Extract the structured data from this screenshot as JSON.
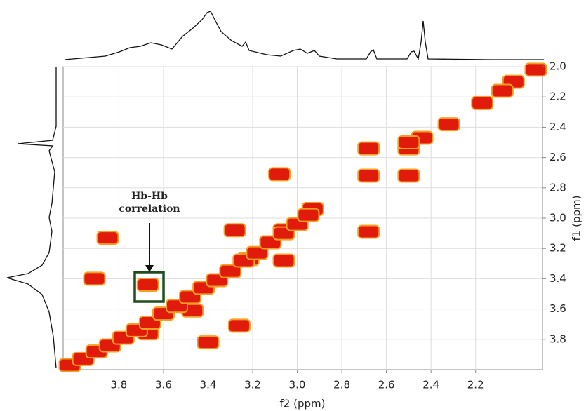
{
  "chart_data": {
    "type": "scatter",
    "xlabel": "f2 (ppm)",
    "ylabel": "f1 (ppm)",
    "xlim": [
      4.05,
      1.9
    ],
    "ylim": [
      2.0,
      4.0
    ],
    "xticks": [
      3.8,
      3.6,
      3.4,
      3.2,
      {
        "value": 3.0,
        "label": "3.0"
      },
      2.8,
      2.6,
      2.4,
      2.2
    ],
    "yticks": [
      {
        "value": 2.0,
        "label": "2.0"
      },
      2.2,
      2.4,
      2.6,
      2.8,
      {
        "value": 3.0,
        "label": "3.0"
      },
      3.2,
      3.4,
      3.6,
      3.8
    ],
    "grid": true,
    "color": "#e01b0b",
    "x": [
      1.93,
      2.03,
      2.08,
      2.17,
      2.32,
      2.44,
      2.5,
      2.5,
      2.68,
      2.5,
      2.68,
      3.08,
      2.93,
      2.68,
      3.28,
      3.06,
      3.85,
      3.91,
      3.67,
      3.47,
      3.26,
      3.67,
      3.4,
      3.06,
      3.22,
      4.02,
      3.96,
      3.9,
      3.84,
      3.78,
      3.72,
      3.66,
      3.6,
      3.54,
      3.48,
      3.42,
      3.36,
      3.3,
      3.24,
      3.18,
      3.12,
      3.06,
      3.0,
      2.95
    ],
    "values": [
      2.02,
      2.1,
      2.16,
      2.24,
      2.38,
      2.47,
      2.54,
      2.5,
      2.54,
      2.72,
      2.72,
      2.71,
      2.94,
      3.09,
      3.08,
      3.08,
      3.13,
      3.4,
      3.44,
      3.61,
      3.71,
      3.76,
      3.82,
      3.28,
      3.27,
      3.97,
      3.93,
      3.88,
      3.84,
      3.79,
      3.74,
      3.69,
      3.63,
      3.58,
      3.52,
      3.46,
      3.41,
      3.35,
      3.28,
      3.23,
      3.16,
      3.1,
      3.04,
      2.98
    ],
    "annotation": [
      "Hb-Hb",
      "correlation"
    ]
  }
}
